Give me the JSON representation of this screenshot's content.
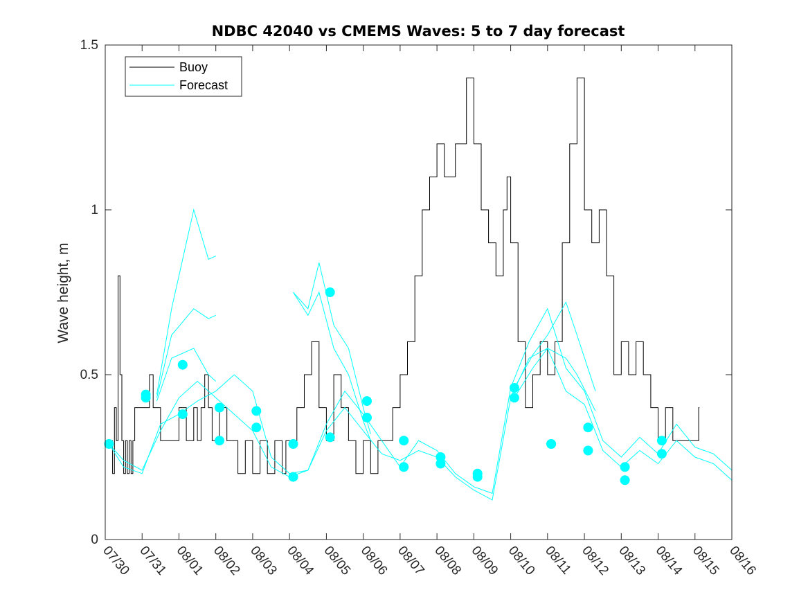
{
  "chart_data": {
    "type": "line",
    "title": "NDBC 42040 vs CMEMS Waves: 5 to 7 day forecast",
    "xlabel": "",
    "ylabel": "Wave height, m",
    "xlim": [
      0,
      17
    ],
    "ylim": [
      0,
      1.5
    ],
    "x_tick_values": [
      0,
      1,
      2,
      3,
      4,
      5,
      6,
      7,
      8,
      9,
      10,
      11,
      12,
      13,
      14,
      15,
      16,
      17
    ],
    "x_tick_labels": [
      "07/30",
      "07/31",
      "08/01",
      "08/02",
      "08/03",
      "08/04",
      "08/05",
      "08/06",
      "08/07",
      "08/08",
      "08/09",
      "08/10",
      "08/11",
      "08/12",
      "08/13",
      "08/14",
      "08/15",
      "08/16"
    ],
    "y_tick_values": [
      0,
      0.5,
      1,
      1.5
    ],
    "y_tick_labels": [
      "0",
      "0.5",
      "1",
      "1.5"
    ],
    "grid": false,
    "legend": {
      "position": "top-left",
      "entries": [
        "Buoy",
        "Forecast"
      ]
    },
    "colors": {
      "buoy": "#000000",
      "forecast": "#00ffff",
      "axis": "#262626"
    },
    "series": [
      {
        "name": "Buoy",
        "style": "step",
        "x": [
          0,
          0.1,
          0.2,
          0.25,
          0.3,
          0.35,
          0.4,
          0.45,
          0.5,
          0.55,
          0.6,
          0.65,
          0.7,
          0.75,
          0.8,
          0.9,
          1.0,
          1.1,
          1.2,
          1.3,
          1.4,
          1.5,
          2.0,
          2.2,
          2.4,
          2.5,
          2.6,
          2.7,
          2.8,
          2.9,
          3.0,
          3.1,
          3.3,
          3.5,
          3.6,
          3.8,
          4.0,
          4.2,
          4.4,
          4.6,
          4.8,
          4.9,
          5.0,
          5.2,
          5.4,
          5.5,
          5.6,
          5.8,
          6.0,
          6.2,
          6.4,
          6.6,
          6.8,
          7.0,
          7.2,
          7.4,
          7.6,
          7.8,
          7.9,
          8.0,
          8.2,
          8.4,
          8.6,
          8.8,
          9.0,
          9.2,
          9.5,
          9.8,
          10.0,
          10.2,
          10.4,
          10.6,
          10.8,
          10.9,
          11.0,
          11.2,
          11.4,
          11.6,
          11.8,
          12.0,
          12.2,
          12.4,
          12.6,
          12.8,
          13.0,
          13.2,
          13.4,
          13.6,
          13.8,
          14.0,
          14.2,
          14.4,
          14.6,
          14.8,
          15.0,
          15.2,
          15.4,
          15.6,
          15.8,
          16.0,
          16.1
        ],
        "values": [
          0.3,
          0.3,
          0.2,
          0.4,
          0.3,
          0.8,
          0.5,
          0.3,
          0.2,
          0.3,
          0.2,
          0.3,
          0.2,
          0.3,
          0.4,
          0.4,
          0.4,
          0.4,
          0.5,
          0.4,
          0.4,
          0.3,
          0.4,
          0.3,
          0.4,
          0.3,
          0.4,
          0.5,
          0.4,
          0.3,
          0.3,
          0.4,
          0.3,
          0.3,
          0.2,
          0.3,
          0.2,
          0.3,
          0.2,
          0.3,
          0.2,
          0.3,
          0.3,
          0.4,
          0.5,
          0.5,
          0.6,
          0.4,
          0.3,
          0.5,
          0.4,
          0.3,
          0.2,
          0.3,
          0.2,
          0.3,
          0.3,
          0.4,
          0.4,
          0.5,
          0.6,
          0.8,
          1.0,
          1.1,
          1.2,
          1.1,
          1.2,
          1.4,
          1.2,
          1.0,
          0.9,
          0.8,
          1.0,
          1.1,
          0.9,
          0.6,
          0.4,
          0.5,
          0.6,
          0.5,
          0.6,
          0.9,
          1.2,
          1.4,
          1.0,
          0.9,
          1.0,
          0.8,
          0.5,
          0.6,
          0.5,
          0.6,
          0.5,
          0.4,
          0.3,
          0.4,
          0.3,
          0.3,
          0.3,
          0.3,
          0.4
        ]
      },
      {
        "name": "Forecast",
        "style": "lines",
        "lines": [
          {
            "x": [
              1.4,
              1.8,
              2.4,
              2.8,
              3.0
            ],
            "y": [
              0.44,
              0.7,
              1.0,
              0.85,
              0.86
            ]
          },
          {
            "x": [
              1.4,
              1.8,
              2.4,
              2.8,
              3.0
            ],
            "y": [
              0.43,
              0.62,
              0.7,
              0.67,
              0.68
            ]
          },
          {
            "x": [
              1.4,
              1.8,
              2.4,
              2.8,
              3.0
            ],
            "y": [
              0.42,
              0.55,
              0.58,
              0.5,
              0.48
            ]
          },
          {
            "x": [
              0.1,
              0.5,
              1.0,
              1.5,
              2.0,
              2.5,
              3.0,
              3.5,
              4.0,
              4.5,
              5.0,
              5.5,
              6.0,
              6.5,
              7.0,
              7.5,
              8.0,
              8.5,
              9.0,
              9.5,
              10.0,
              10.5,
              11.0,
              11.5,
              12.0,
              12.5,
              13.0,
              13.5,
              14.0,
              14.5,
              15.0,
              15.5,
              16.0,
              16.5,
              17.0
            ],
            "y": [
              0.29,
              0.22,
              0.2,
              0.35,
              0.38,
              0.42,
              0.45,
              0.5,
              0.45,
              0.25,
              0.2,
              0.21,
              0.35,
              0.45,
              0.38,
              0.3,
              0.22,
              0.3,
              0.27,
              0.2,
              0.16,
              0.14,
              0.46,
              0.6,
              0.7,
              0.52,
              0.45,
              0.3,
              0.25,
              0.31,
              0.26,
              0.35,
              0.28,
              0.26,
              0.21
            ]
          },
          {
            "x": [
              0.1,
              0.5,
              1.0,
              1.5,
              2.0,
              2.5,
              3.0,
              3.5,
              4.0,
              4.5,
              5.0,
              5.5,
              6.0,
              6.5,
              7.0,
              7.5,
              8.0,
              8.5,
              9.0,
              9.5,
              10.0,
              10.5,
              11.0,
              11.5,
              12.0,
              12.5,
              13.0,
              13.5,
              14.0,
              14.5,
              15.0,
              15.5,
              16.0,
              16.5,
              17.0
            ],
            "y": [
              0.29,
              0.24,
              0.21,
              0.33,
              0.43,
              0.48,
              0.43,
              0.38,
              0.33,
              0.22,
              0.19,
              0.21,
              0.33,
              0.4,
              0.33,
              0.26,
              0.24,
              0.27,
              0.25,
              0.19,
              0.15,
              0.12,
              0.43,
              0.55,
              0.58,
              0.45,
              0.41,
              0.27,
              0.22,
              0.27,
              0.23,
              0.3,
              0.25,
              0.23,
              0.18
            ]
          },
          {
            "x": [
              5.1,
              5.5,
              5.8,
              6.2,
              6.6,
              7.0,
              7.2
            ],
            "y": [
              0.75,
              0.7,
              0.84,
              0.65,
              0.58,
              0.4,
              0.32
            ]
          },
          {
            "x": [
              5.1,
              5.5,
              5.8,
              6.2,
              6.6,
              7.0,
              7.2
            ],
            "y": [
              0.75,
              0.68,
              0.75,
              0.58,
              0.5,
              0.36,
              0.3
            ]
          },
          {
            "x": [
              11.1,
              11.6,
              12.0,
              12.5,
              12.8,
              13.3
            ],
            "y": [
              0.46,
              0.56,
              0.62,
              0.72,
              0.62,
              0.45
            ]
          },
          {
            "x": [
              11.1,
              11.6,
              12.0,
              12.5,
              12.8,
              13.3
            ],
            "y": [
              0.43,
              0.52,
              0.58,
              0.55,
              0.5,
              0.39
            ]
          }
        ]
      }
    ],
    "markers": {
      "x": [
        0.1,
        1.1,
        1.1,
        2.1,
        2.1,
        3.1,
        3.1,
        4.1,
        4.1,
        5.1,
        5.1,
        6.1,
        6.1,
        7.1,
        7.1,
        8.1,
        8.1,
        9.1,
        9.1,
        10.1,
        10.1,
        11.1,
        11.1,
        12.1,
        12.1,
        13.1,
        13.1,
        14.1,
        14.1,
        15.1,
        15.1
      ],
      "y": [
        0.29,
        0.44,
        0.43,
        0.53,
        0.38,
        0.4,
        0.3,
        0.39,
        0.34,
        0.29,
        0.19,
        0.75,
        0.31,
        0.42,
        0.37,
        0.3,
        0.22,
        0.25,
        0.23,
        0.2,
        0.19,
        0.46,
        0.43,
        0.29,
        0.29,
        0.34,
        0.27,
        0.22,
        0.18,
        0.3,
        0.26
      ]
    }
  }
}
